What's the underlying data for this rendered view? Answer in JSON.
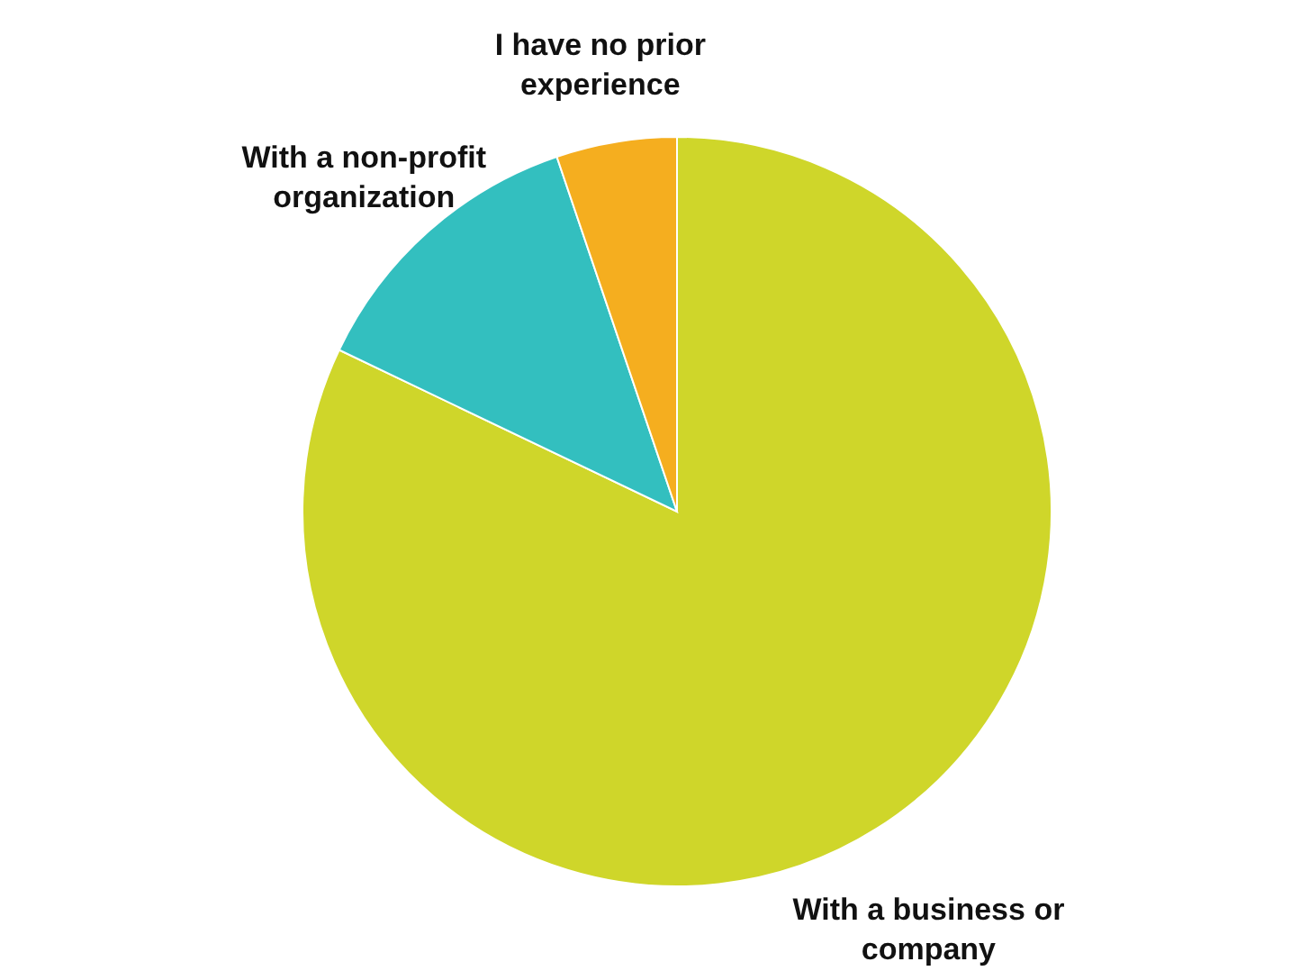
{
  "chart_data": {
    "type": "pie",
    "categories": [
      "With a business or company",
      "With a non-profit organization",
      "I have no prior experience"
    ],
    "values": [
      82.1,
      12.7,
      5.2
    ],
    "colors": [
      "#cfd62a",
      "#33bfbf",
      "#f5ae1f"
    ]
  }
}
